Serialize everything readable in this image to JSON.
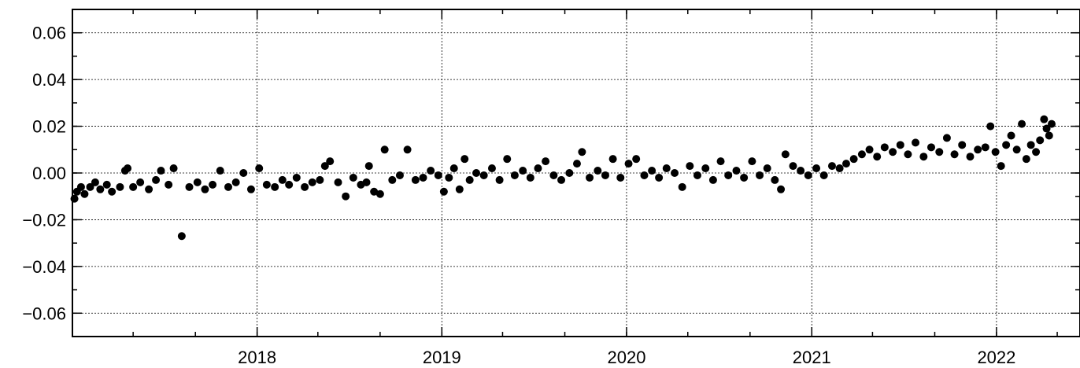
{
  "chart_data": {
    "type": "scatter",
    "title": "",
    "xlabel": "",
    "ylabel": "",
    "x_axis": {
      "type": "date",
      "range": [
        "2017-01-01",
        "2022-06-15"
      ],
      "major_ticks": [
        "2018-01-01",
        "2019-01-01",
        "2020-01-01",
        "2021-01-01",
        "2022-01-01"
      ],
      "major_tick_labels": [
        "2018",
        "2019",
        "2020",
        "2021",
        "2022"
      ],
      "minor_tick_interval_months": 4
    },
    "y_axis": {
      "range": [
        -0.07,
        0.07
      ],
      "major_ticks": [
        -0.06,
        -0.04,
        -0.02,
        0.0,
        0.02,
        0.04,
        0.06
      ],
      "major_tick_labels": [
        "−0.06",
        "−0.04",
        "−0.02",
        "0.00",
        "0.02",
        "0.04",
        "0.06"
      ],
      "minor_tick_step": 0.01
    },
    "grid": true,
    "marker": "filled-circle",
    "marker_color": "#000000",
    "series": [
      {
        "points": [
          [
            "2017-01-05",
            -0.011
          ],
          [
            "2017-01-10",
            -0.008
          ],
          [
            "2017-01-18",
            -0.006
          ],
          [
            "2017-01-25",
            -0.009
          ],
          [
            "2017-02-05",
            -0.006
          ],
          [
            "2017-02-15",
            -0.004
          ],
          [
            "2017-02-25",
            -0.007
          ],
          [
            "2017-03-10",
            -0.005
          ],
          [
            "2017-03-20",
            -0.008
          ],
          [
            "2017-04-05",
            -0.006
          ],
          [
            "2017-04-15",
            0.001
          ],
          [
            "2017-04-20",
            0.002
          ],
          [
            "2017-05-01",
            -0.006
          ],
          [
            "2017-05-15",
            -0.004
          ],
          [
            "2017-06-01",
            -0.007
          ],
          [
            "2017-06-15",
            -0.003
          ],
          [
            "2017-06-25",
            0.001
          ],
          [
            "2017-07-10",
            -0.005
          ],
          [
            "2017-07-20",
            0.002
          ],
          [
            "2017-08-05",
            -0.027
          ],
          [
            "2017-08-20",
            -0.006
          ],
          [
            "2017-09-05",
            -0.004
          ],
          [
            "2017-09-20",
            -0.007
          ],
          [
            "2017-10-05",
            -0.005
          ],
          [
            "2017-10-20",
            0.001
          ],
          [
            "2017-11-05",
            -0.006
          ],
          [
            "2017-11-20",
            -0.004
          ],
          [
            "2017-12-05",
            0.0
          ],
          [
            "2017-12-20",
            -0.007
          ],
          [
            "2018-01-05",
            0.002
          ],
          [
            "2018-01-20",
            -0.005
          ],
          [
            "2018-02-05",
            -0.006
          ],
          [
            "2018-02-20",
            -0.003
          ],
          [
            "2018-03-05",
            -0.005
          ],
          [
            "2018-03-20",
            -0.002
          ],
          [
            "2018-04-05",
            -0.006
          ],
          [
            "2018-04-20",
            -0.004
          ],
          [
            "2018-05-05",
            -0.003
          ],
          [
            "2018-05-15",
            0.003
          ],
          [
            "2018-05-25",
            0.005
          ],
          [
            "2018-06-10",
            -0.004
          ],
          [
            "2018-06-25",
            -0.01
          ],
          [
            "2018-07-10",
            -0.002
          ],
          [
            "2018-07-25",
            -0.005
          ],
          [
            "2018-08-05",
            -0.004
          ],
          [
            "2018-08-10",
            0.003
          ],
          [
            "2018-08-20",
            -0.008
          ],
          [
            "2018-09-01",
            -0.009
          ],
          [
            "2018-09-10",
            0.01
          ],
          [
            "2018-09-25",
            -0.003
          ],
          [
            "2018-10-10",
            -0.001
          ],
          [
            "2018-10-25",
            0.01
          ],
          [
            "2018-11-10",
            -0.003
          ],
          [
            "2018-11-25",
            -0.002
          ],
          [
            "2018-12-10",
            0.001
          ],
          [
            "2018-12-25",
            -0.001
          ],
          [
            "2019-01-05",
            -0.008
          ],
          [
            "2019-01-15",
            -0.002
          ],
          [
            "2019-01-25",
            0.002
          ],
          [
            "2019-02-05",
            -0.007
          ],
          [
            "2019-02-15",
            0.006
          ],
          [
            "2019-02-25",
            -0.003
          ],
          [
            "2019-03-10",
            0.0
          ],
          [
            "2019-03-25",
            -0.001
          ],
          [
            "2019-04-10",
            0.002
          ],
          [
            "2019-04-25",
            -0.003
          ],
          [
            "2019-05-10",
            0.006
          ],
          [
            "2019-05-25",
            -0.001
          ],
          [
            "2019-06-10",
            0.001
          ],
          [
            "2019-06-25",
            -0.002
          ],
          [
            "2019-07-10",
            0.002
          ],
          [
            "2019-07-25",
            0.005
          ],
          [
            "2019-08-10",
            -0.001
          ],
          [
            "2019-08-25",
            -0.003
          ],
          [
            "2019-09-10",
            0.0
          ],
          [
            "2019-09-25",
            0.004
          ],
          [
            "2019-10-05",
            0.009
          ],
          [
            "2019-10-20",
            -0.002
          ],
          [
            "2019-11-05",
            0.001
          ],
          [
            "2019-11-20",
            -0.001
          ],
          [
            "2019-12-05",
            0.006
          ],
          [
            "2019-12-20",
            -0.002
          ],
          [
            "2020-01-05",
            0.004
          ],
          [
            "2020-01-20",
            0.006
          ],
          [
            "2020-02-05",
            -0.001
          ],
          [
            "2020-02-20",
            0.001
          ],
          [
            "2020-03-05",
            -0.002
          ],
          [
            "2020-03-20",
            0.002
          ],
          [
            "2020-04-05",
            0.0
          ],
          [
            "2020-04-20",
            -0.006
          ],
          [
            "2020-05-05",
            0.003
          ],
          [
            "2020-05-20",
            -0.001
          ],
          [
            "2020-06-05",
            0.002
          ],
          [
            "2020-06-20",
            -0.003
          ],
          [
            "2020-07-05",
            0.005
          ],
          [
            "2020-07-20",
            -0.001
          ],
          [
            "2020-08-05",
            0.001
          ],
          [
            "2020-08-20",
            -0.002
          ],
          [
            "2020-09-05",
            0.005
          ],
          [
            "2020-09-20",
            -0.001
          ],
          [
            "2020-10-05",
            0.002
          ],
          [
            "2020-10-20",
            -0.003
          ],
          [
            "2020-11-01",
            -0.007
          ],
          [
            "2020-11-10",
            0.008
          ],
          [
            "2020-11-25",
            0.003
          ],
          [
            "2020-12-10",
            0.001
          ],
          [
            "2020-12-25",
            -0.001
          ],
          [
            "2021-01-10",
            0.002
          ],
          [
            "2021-01-25",
            -0.001
          ],
          [
            "2021-02-10",
            0.003
          ],
          [
            "2021-02-25",
            0.002
          ],
          [
            "2021-03-10",
            0.004
          ],
          [
            "2021-03-25",
            0.006
          ],
          [
            "2021-04-10",
            0.008
          ],
          [
            "2021-04-25",
            0.01
          ],
          [
            "2021-05-10",
            0.007
          ],
          [
            "2021-05-25",
            0.011
          ],
          [
            "2021-06-10",
            0.009
          ],
          [
            "2021-06-25",
            0.012
          ],
          [
            "2021-07-10",
            0.008
          ],
          [
            "2021-07-25",
            0.013
          ],
          [
            "2021-08-10",
            0.007
          ],
          [
            "2021-08-25",
            0.011
          ],
          [
            "2021-09-10",
            0.009
          ],
          [
            "2021-09-25",
            0.015
          ],
          [
            "2021-10-10",
            0.008
          ],
          [
            "2021-10-25",
            0.012
          ],
          [
            "2021-11-10",
            0.007
          ],
          [
            "2021-11-25",
            0.01
          ],
          [
            "2021-12-10",
            0.011
          ],
          [
            "2021-12-20",
            0.02
          ],
          [
            "2021-12-30",
            0.009
          ],
          [
            "2022-01-10",
            0.003
          ],
          [
            "2022-01-20",
            0.012
          ],
          [
            "2022-01-30",
            0.016
          ],
          [
            "2022-02-10",
            0.01
          ],
          [
            "2022-02-20",
            0.021
          ],
          [
            "2022-03-01",
            0.006
          ],
          [
            "2022-03-10",
            0.012
          ],
          [
            "2022-03-20",
            0.009
          ],
          [
            "2022-03-28",
            0.014
          ],
          [
            "2022-04-05",
            0.023
          ],
          [
            "2022-04-10",
            0.019
          ],
          [
            "2022-04-15",
            0.016
          ],
          [
            "2022-04-20",
            0.021
          ]
        ]
      }
    ]
  }
}
